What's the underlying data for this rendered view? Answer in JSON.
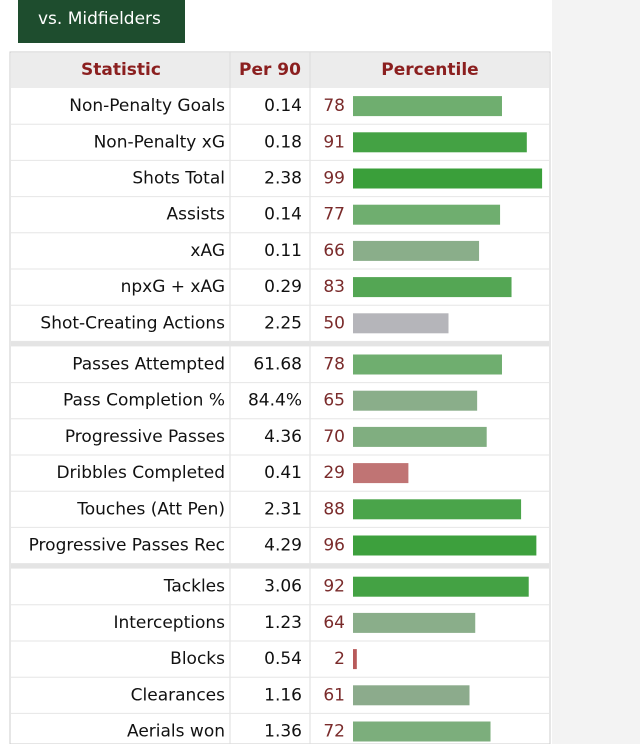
{
  "tab": "vs. Midfielders",
  "header": {
    "statistic": "Statistic",
    "per90": "Per 90",
    "percentile": "Percentile"
  },
  "sections": [
    [
      {
        "statistic": "Non-Penalty Goals",
        "per90": 0.14,
        "percentile": 78,
        "color": "#6fae6f"
      },
      {
        "statistic": "Non-Penalty xG",
        "per90": 0.18,
        "percentile": 91,
        "color": "#44a244"
      },
      {
        "statistic": "Shots Total",
        "per90": 2.38,
        "percentile": 99,
        "color": "#3a9f3a"
      },
      {
        "statistic": "Assists",
        "per90": 0.14,
        "percentile": 77,
        "color": "#6fae6f"
      },
      {
        "statistic": "xAG",
        "per90": 0.11,
        "percentile": 66,
        "color": "#8aae8a"
      },
      {
        "statistic": "npxG + xAG",
        "per90": 0.29,
        "percentile": 83,
        "color": "#54a654"
      },
      {
        "statistic": "Shot-Creating Actions",
        "per90": 2.25,
        "percentile": 50,
        "color": "#b5b5ba"
      }
    ],
    [
      {
        "statistic": "Passes Attempted",
        "per90": 61.68,
        "percentile": 78,
        "color": "#6fae6f"
      },
      {
        "statistic": "Pass Completion %",
        "per90": {
          "value": 84.4,
          "label": "84.4%"
        },
        "percentile": 65,
        "color": "#8aae8a"
      },
      {
        "statistic": "Progressive Passes",
        "per90": 4.36,
        "percentile": 70,
        "color": "#80ae80"
      },
      {
        "statistic": "Dribbles Completed",
        "per90": 0.41,
        "percentile": 29,
        "color": "#c07474"
      },
      {
        "statistic": "Touches (Att Pen)",
        "per90": 2.31,
        "percentile": 88,
        "color": "#4aa44a"
      },
      {
        "statistic": "Progressive Passes Rec",
        "per90": 4.29,
        "percentile": 96,
        "color": "#3da03d"
      }
    ],
    [
      {
        "statistic": "Tackles",
        "per90": 3.06,
        "percentile": 92,
        "color": "#44a244"
      },
      {
        "statistic": "Interceptions",
        "per90": 1.23,
        "percentile": 64,
        "color": "#8aae8a"
      },
      {
        "statistic": "Blocks",
        "per90": 0.54,
        "percentile": 2,
        "color": "#b85a5a"
      },
      {
        "statistic": "Clearances",
        "per90": 1.16,
        "percentile": 61,
        "color": "#8cab8c"
      },
      {
        "statistic": "Aerials won",
        "per90": 1.36,
        "percentile": 72,
        "color": "#7cae7c"
      }
    ]
  ]
}
